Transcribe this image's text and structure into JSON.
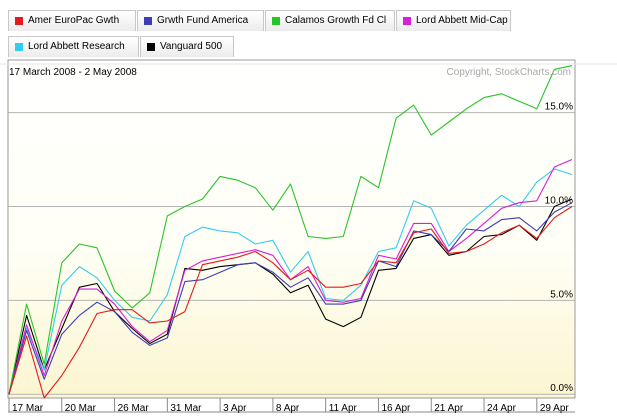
{
  "chart_data": {
    "type": "line",
    "date_range": "17 March 2008 - 2 May 2008",
    "copyright": "Copyright, StockCharts.com",
    "y_axis": {
      "position": "right",
      "unit": "percent",
      "ylim": [
        -0.2,
        17.8
      ],
      "ticks": [
        {
          "value": 0,
          "label": "0.0%"
        },
        {
          "value": 5,
          "label": "5.0%"
        },
        {
          "value": 10,
          "label": "10.0%"
        },
        {
          "value": 15,
          "label": "15.0%"
        }
      ]
    },
    "x_axis": {
      "labels": [
        "17 Mar",
        "20 Mar",
        "26 Mar",
        "31 Mar",
        "3 Apr",
        "8 Apr",
        "11 Apr",
        "16 Apr",
        "21 Apr",
        "24 Apr",
        "29 Apr"
      ],
      "label_positions": [
        0,
        3,
        6,
        9,
        12,
        15,
        18,
        21,
        24,
        27,
        30
      ]
    },
    "x": [
      0,
      1,
      2,
      3,
      4,
      5,
      6,
      7,
      8,
      9,
      10,
      11,
      12,
      13,
      14,
      15,
      16,
      17,
      18,
      19,
      20,
      21,
      22,
      23,
      24,
      25,
      26,
      27,
      28,
      29,
      30,
      31,
      32
    ],
    "grid": true,
    "legend_position": "top",
    "series": [
      {
        "name": "Amer EuroPac Gwth",
        "color": "#e41a1c",
        "values": [
          0.0,
          3.1,
          -0.2,
          1.0,
          2.5,
          4.3,
          4.5,
          4.5,
          3.8,
          3.9,
          4.4,
          6.9,
          7.1,
          7.3,
          7.6,
          7.0,
          6.1,
          6.6,
          5.7,
          5.7,
          5.9,
          7.1,
          7.0,
          8.6,
          8.8,
          7.5,
          7.6,
          8.0,
          8.6,
          9.0,
          8.3,
          9.4,
          10.0
        ]
      },
      {
        "name": "Grwth Fund America",
        "color": "#3d3db7",
        "values": [
          0.0,
          3.4,
          0.8,
          3.2,
          4.2,
          4.9,
          4.4,
          3.3,
          2.6,
          3.0,
          6.0,
          6.1,
          6.5,
          6.9,
          7.0,
          6.5,
          5.7,
          6.2,
          4.8,
          4.8,
          5.0,
          7.1,
          6.8,
          8.7,
          8.5,
          7.6,
          8.8,
          8.7,
          9.3,
          9.4,
          8.7,
          9.7,
          10.2
        ]
      },
      {
        "name": "Calamos Growth Fd Cl",
        "color": "#29c429",
        "values": [
          0.0,
          4.8,
          1.6,
          7.0,
          8.0,
          7.8,
          5.5,
          4.6,
          5.4,
          9.5,
          10.0,
          10.4,
          11.6,
          11.4,
          11.0,
          9.8,
          11.2,
          8.4,
          8.3,
          8.4,
          11.6,
          11.0,
          14.7,
          15.4,
          13.8,
          14.5,
          15.2,
          15.8,
          16.0,
          15.6,
          15.2,
          17.3,
          17.5
        ]
      },
      {
        "name": "Lord Abbett Mid-Cap",
        "color": "#d81ed8",
        "values": [
          0.0,
          3.7,
          1.0,
          3.9,
          5.6,
          5.6,
          4.8,
          3.6,
          2.8,
          3.4,
          6.6,
          7.1,
          7.3,
          7.5,
          7.7,
          7.4,
          6.1,
          6.8,
          5.0,
          4.9,
          5.1,
          7.4,
          7.2,
          9.1,
          9.1,
          7.6,
          8.3,
          9.1,
          9.9,
          10.2,
          10.3,
          12.1,
          12.5
        ]
      },
      {
        "name": "Lord Abbett Research",
        "color": "#33ccf0",
        "values": [
          0.0,
          3.5,
          1.3,
          5.8,
          6.8,
          6.2,
          5.0,
          4.1,
          3.9,
          5.3,
          8.4,
          8.9,
          8.7,
          8.6,
          8.0,
          8.2,
          6.5,
          7.6,
          5.1,
          5.0,
          5.8,
          7.6,
          7.8,
          10.3,
          9.9,
          7.9,
          9.0,
          9.8,
          10.6,
          10.0,
          11.3,
          12.0,
          11.7
        ]
      },
      {
        "name": "Vanguard 500",
        "color": "#000000",
        "values": [
          0.0,
          4.2,
          1.3,
          3.5,
          5.7,
          5.9,
          4.4,
          3.5,
          2.7,
          3.2,
          6.7,
          6.6,
          6.8,
          6.9,
          7.0,
          6.4,
          5.4,
          5.8,
          4.0,
          3.6,
          4.1,
          6.6,
          6.7,
          8.3,
          8.5,
          7.4,
          7.6,
          8.4,
          8.5,
          9.0,
          8.2,
          10.0,
          10.4
        ]
      }
    ]
  }
}
